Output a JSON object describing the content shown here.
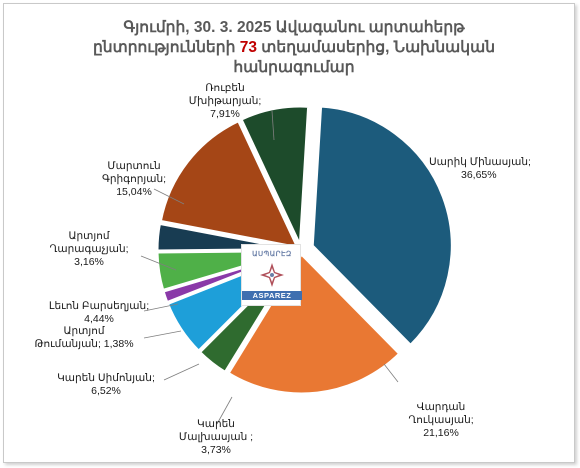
{
  "chart_data": {
    "type": "pie",
    "title_parts": [
      "Գյումրի, 30. 3. 2025 Ավագանու արտահերթ",
      "ընտրությունների",
      "73",
      "տեղամասերից, Նախնական",
      "հանրագումար"
    ],
    "slices": [
      {
        "name_lines": [
          "Սարիկ Մինասյան;"
        ],
        "value_label": "36,65%",
        "value": 36.65,
        "color": "#1c5b7c"
      },
      {
        "name_lines": [
          "Վարդան",
          "Ղուկասյան;"
        ],
        "value_label": "21,16%",
        "value": 21.16,
        "color": "#e97833"
      },
      {
        "name_lines": [
          "Կարեն",
          "Մալխասյան ;"
        ],
        "value_label": "3,73%",
        "value": 3.73,
        "color": "#2f6b2f"
      },
      {
        "name_lines": [
          "Կարեն Սիմոնյան;"
        ],
        "value_label": "6,52%",
        "value": 6.52,
        "color": "#1e9fd9"
      },
      {
        "name_lines": [
          "Արտյոմ",
          "Թումանյան; 1,38%"
        ],
        "value_label": "",
        "value": 1.38,
        "color": "#8a39a8"
      },
      {
        "name_lines": [
          "Լեւոն Բարսեղյան;"
        ],
        "value_label": "4,44%",
        "value": 4.44,
        "color": "#4fb048"
      },
      {
        "name_lines": [
          "Արտյոմ",
          "Ղարագաչյան;"
        ],
        "value_label": "3,16%",
        "value": 3.16,
        "color": "#183c52"
      },
      {
        "name_lines": [
          "Մարտուն",
          "Գրիգորյան;"
        ],
        "value_label": "15,04%",
        "value": 15.04,
        "color": "#a54616"
      },
      {
        "name_lines": [
          "Ռուբեն",
          "Մխիթարյան;"
        ],
        "value_label": "7,91%",
        "value": 7.91,
        "color": "#1d4b2b"
      }
    ]
  },
  "logo": {
    "top_text": "ԱՍՊԱՐԷԶ",
    "bottom_text": "ASPAREZ"
  }
}
